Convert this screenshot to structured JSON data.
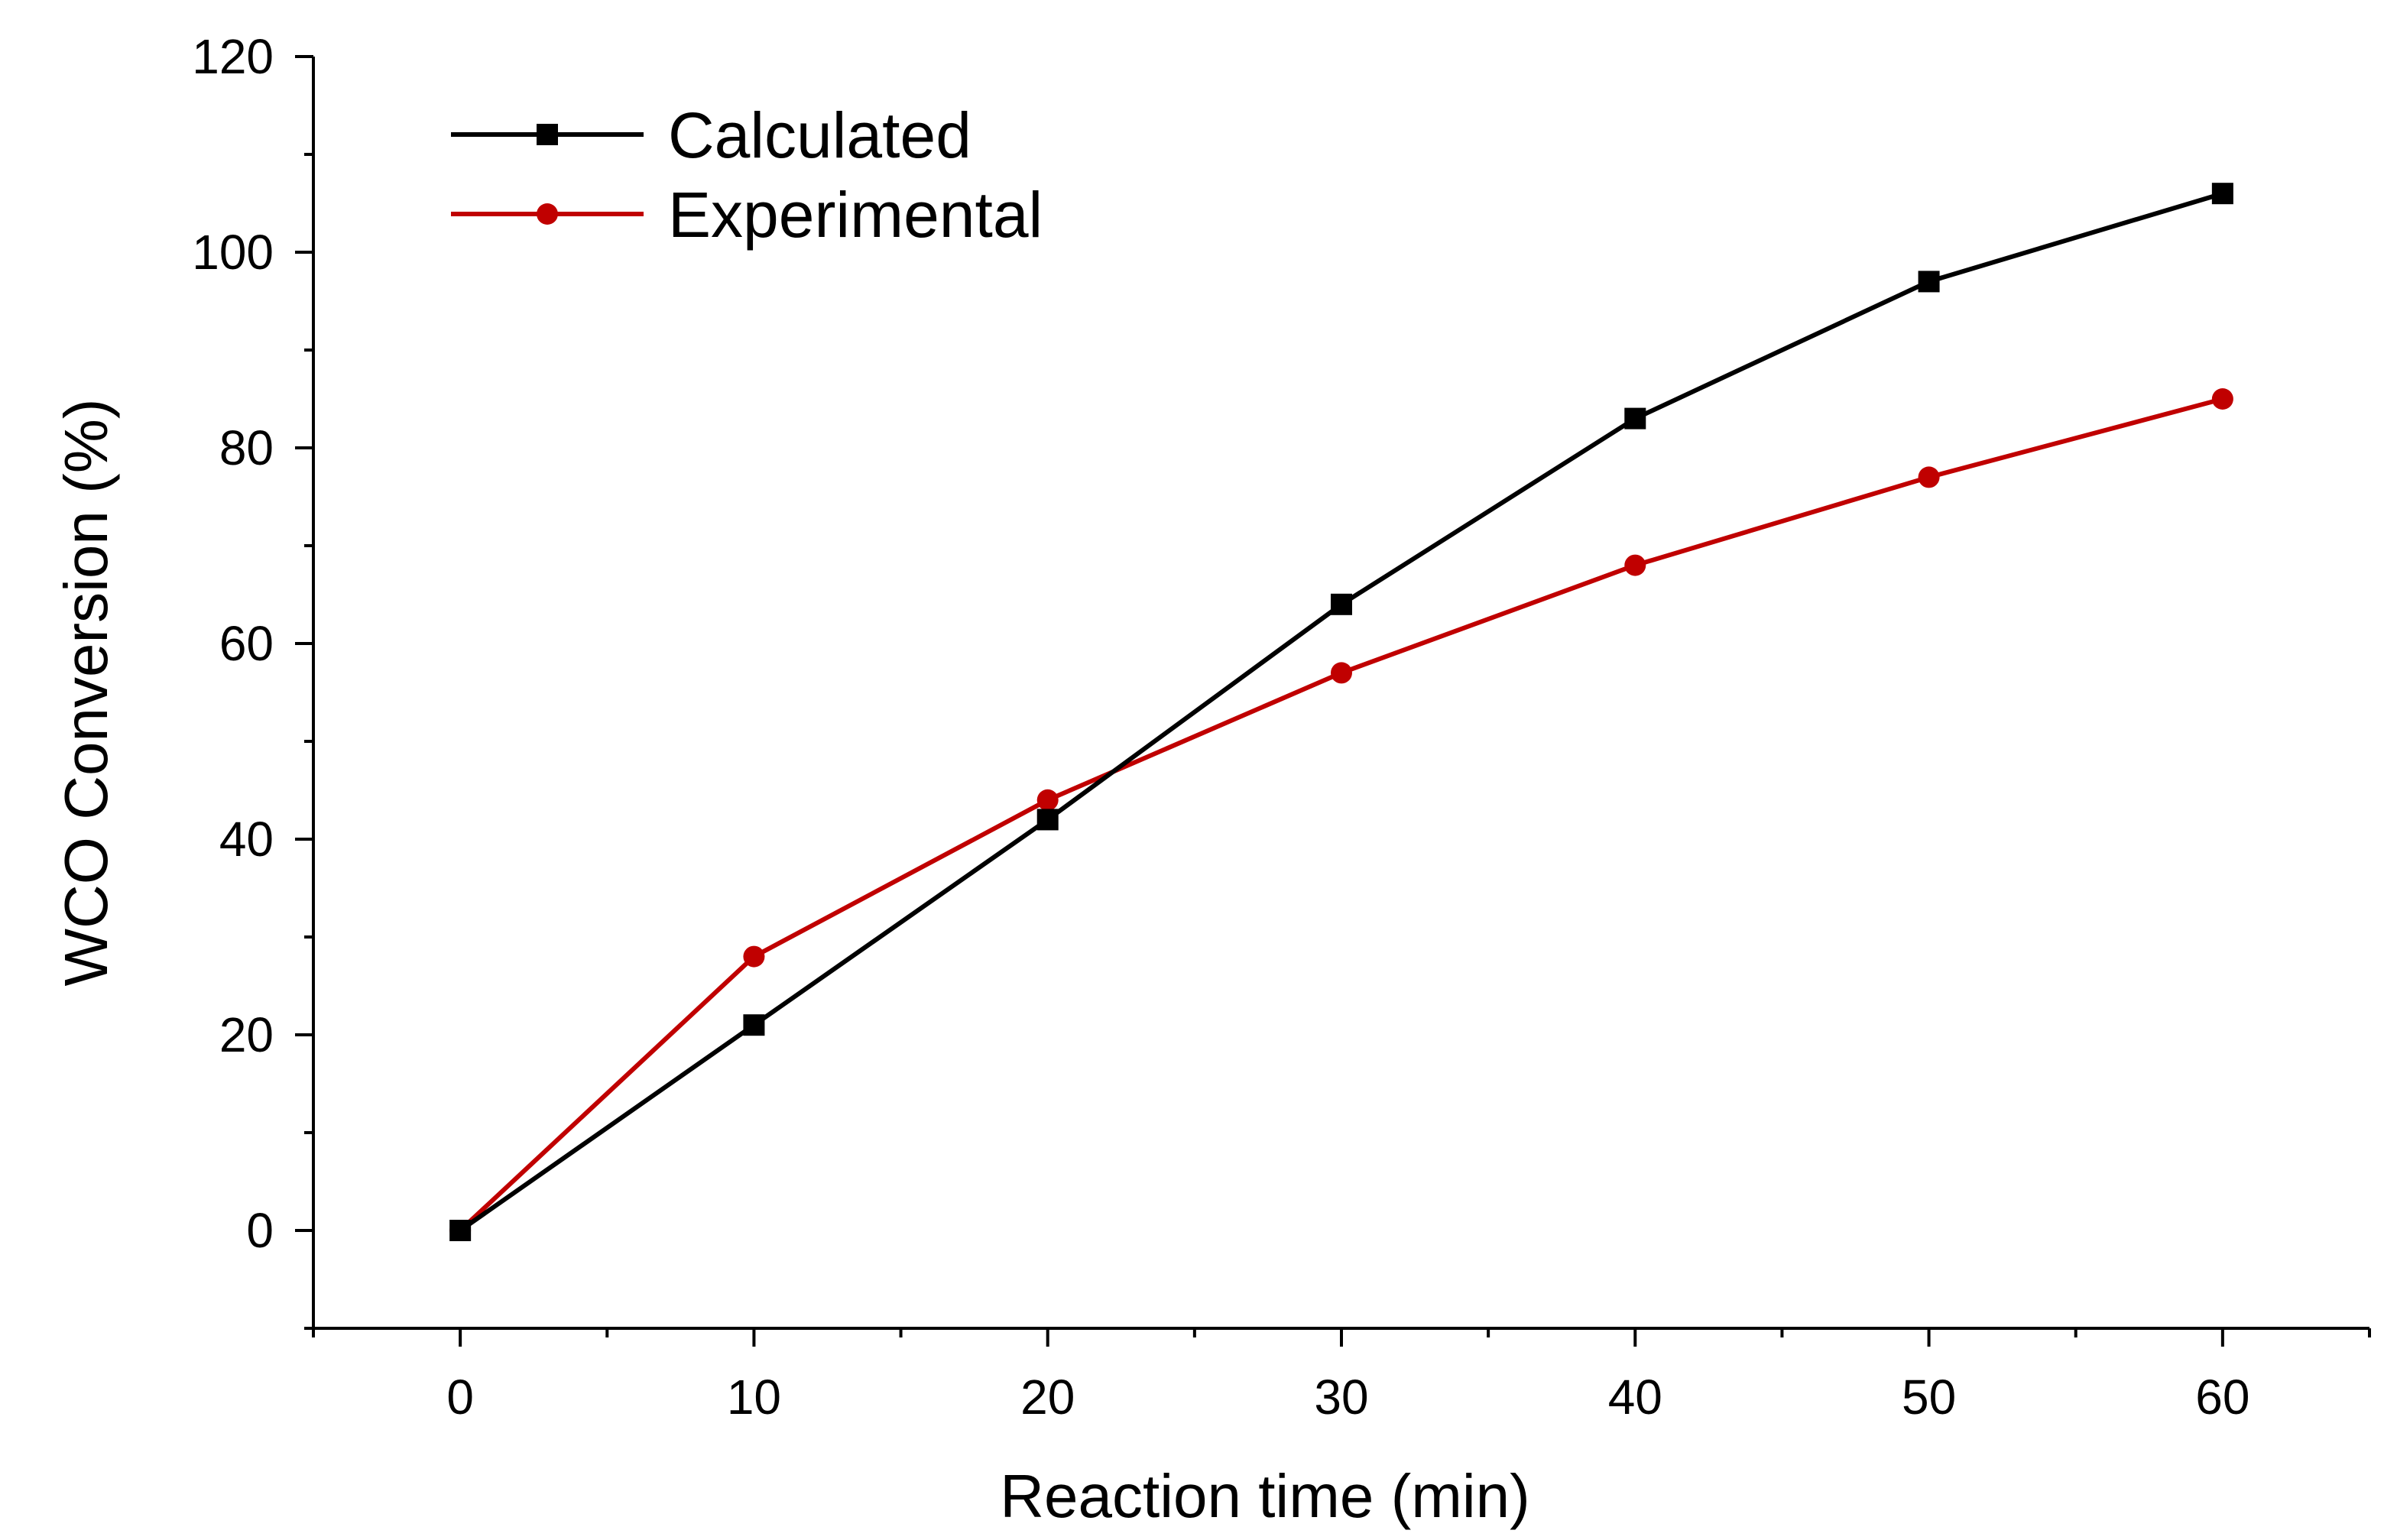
{
  "chart_data": {
    "type": "line",
    "title": "",
    "xlabel": "Reaction time (min)",
    "ylabel": "WCO Conversion (%)",
    "xlim": [
      -5,
      65
    ],
    "ylim": [
      -10,
      120
    ],
    "xticks": [
      0,
      10,
      20,
      30,
      40,
      50,
      60
    ],
    "xtick_labels": [
      "0",
      "10",
      "20",
      "30",
      "40",
      "50",
      "60"
    ],
    "yticks": [
      0,
      20,
      40,
      60,
      80,
      100,
      120
    ],
    "ytick_labels": [
      "0",
      "20",
      "40",
      "60",
      "80",
      "100",
      "120"
    ],
    "grid": false,
    "legend_position": "top-left",
    "x": [
      0,
      10,
      20,
      30,
      40,
      50,
      60
    ],
    "series": [
      {
        "name": "Calculated",
        "values": [
          0,
          21,
          42,
          64,
          83,
          97,
          106
        ],
        "color": "#000000",
        "marker": "square"
      },
      {
        "name": "Experimental",
        "values": [
          0,
          28,
          44,
          57,
          68,
          77,
          85
        ],
        "color": "#c00000",
        "marker": "circle"
      }
    ]
  }
}
